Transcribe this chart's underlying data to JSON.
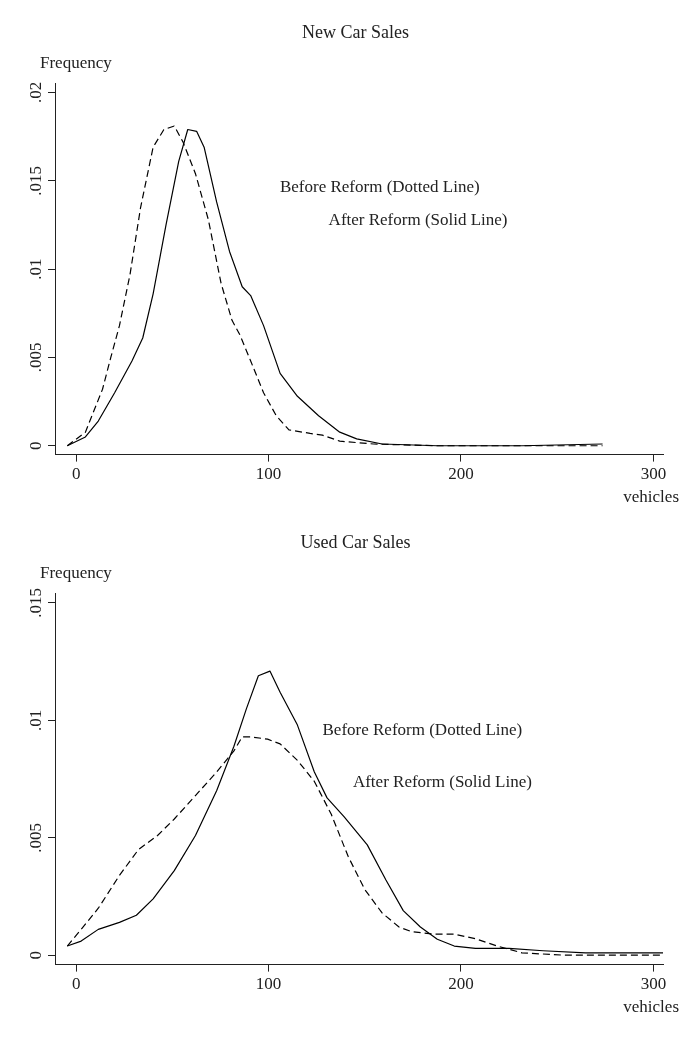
{
  "chart_data": [
    {
      "type": "line",
      "title": "New Car Sales",
      "ylabel": "Frequency",
      "xlabel": "vehicles",
      "xlim": [
        -11,
        305
      ],
      "ylim": [
        -0.0005,
        0.0205
      ],
      "xticks": [
        0,
        100,
        200,
        300
      ],
      "yticks": [
        0,
        {
          "value": 0.005,
          "label": ".005"
        },
        {
          "value": 0.01,
          "label": ".01"
        },
        {
          "value": 0.015,
          "label": ".015"
        },
        {
          "value": 0.02,
          "label": ".02"
        }
      ],
      "grid": false,
      "legend": false,
      "marker": "none",
      "annotations": [
        "Before Reform (Dotted Line)",
        "After Reform (Solid Line)"
      ],
      "series": [
        {
          "color": "#000000",
          "line_style": "dashed",
          "x": [
            -4.6,
            4.8,
            13.7,
            18,
            22.5,
            28,
            33.5,
            40,
            45.6,
            51,
            55.5,
            62,
            68.7,
            75.3,
            81,
            85,
            90.7,
            97.4,
            104,
            110.6,
            121.6,
            128,
            137,
            154.6,
            187.7,
            231.7,
            273.6
          ],
          "values": [
            0,
            0.00077,
            0.0032,
            0.005,
            0.0068,
            0.0097,
            0.0135,
            0.0169,
            0.0179,
            0.0181,
            0.0172,
            0.0154,
            0.0128,
            0.0092,
            0.0071,
            0.0063,
            0.0048,
            0.003,
            0.0017,
            0.0009,
            0.0007,
            0.0006,
            0.00026,
            0.0001,
            0,
            0,
            0
          ]
        },
        {
          "color": "#000000",
          "line_style": "solid",
          "x": [
            -4.6,
            4.8,
            11.5,
            20,
            29,
            34.6,
            40,
            46.7,
            53.3,
            58,
            62.6,
            66.5,
            73,
            79.7,
            86.3,
            90.7,
            97.4,
            106,
            115,
            126,
            137,
            145.8,
            159,
            187.7,
            231.7,
            273.6
          ],
          "values": [
            0,
            0.0005,
            0.0014,
            0.003,
            0.0048,
            0.0061,
            0.0086,
            0.0125,
            0.0161,
            0.0179,
            0.0178,
            0.0169,
            0.0138,
            0.011,
            0.009,
            0.0085,
            0.0068,
            0.0041,
            0.0028,
            0.0017,
            0.00077,
            0.00039,
            0.0001,
            0,
            0,
            0.0001
          ]
        }
      ]
    },
    {
      "type": "line",
      "title": "Used Car Sales",
      "ylabel": "Frequency",
      "xlabel": "vehicles",
      "xlim": [
        -11,
        305
      ],
      "ylim": [
        -0.0004,
        0.0154
      ],
      "xticks": [
        0,
        100,
        200,
        300
      ],
      "yticks": [
        0,
        {
          "value": 0.005,
          "label": ".005"
        },
        {
          "value": 0.01,
          "label": ".01"
        },
        {
          "value": 0.015,
          "label": ".015"
        }
      ],
      "grid": false,
      "legend": false,
      "marker": "none",
      "annotations": [
        "Before Reform (Dotted Line)",
        "After Reform (Solid Line)"
      ],
      "series": [
        {
          "color": "#000000",
          "line_style": "dashed",
          "x": [
            -4.6,
            2.6,
            11.5,
            22.5,
            32.4,
            42.3,
            51,
            62,
            73,
            82,
            86.3,
            90.7,
            99.5,
            106,
            115,
            123.8,
            132.6,
            141.4,
            150,
            159,
            167.8,
            174.4,
            185.5,
            196.5,
            207.5,
            218.5,
            231.7,
            253.7,
            305
          ],
          "values": [
            0.00039,
            0.0011,
            0.002,
            0.0034,
            0.0045,
            0.0051,
            0.0058,
            0.0068,
            0.0078,
            0.0087,
            0.0093,
            0.0093,
            0.0092,
            0.009,
            0.0083,
            0.0074,
            0.006,
            0.0042,
            0.0028,
            0.0018,
            0.0012,
            0.001,
            0.0009,
            0.0009,
            0.0007,
            0.0004,
            0.0001,
            0,
            0
          ]
        },
        {
          "color": "#000000",
          "line_style": "solid",
          "x": [
            -4.6,
            2.6,
            11.5,
            22.5,
            31.3,
            40,
            51,
            62,
            73,
            82,
            88.5,
            94.7,
            100.7,
            106,
            115,
            123.8,
            130.4,
            139.2,
            151.3,
            161,
            170,
            178.9,
            187.7,
            196.5,
            207.5,
            225,
            242.7,
            264.7,
            305
          ],
          "values": [
            0.00039,
            0.0006,
            0.0011,
            0.0014,
            0.0017,
            0.0024,
            0.0036,
            0.0051,
            0.007,
            0.0089,
            0.0105,
            0.0119,
            0.0121,
            0.0112,
            0.0098,
            0.0078,
            0.0067,
            0.0059,
            0.0047,
            0.0032,
            0.0019,
            0.0012,
            0.00068,
            0.00039,
            0.00029,
            0.00029,
            0.00019,
            0.0001,
            0.0001
          ]
        }
      ]
    }
  ]
}
